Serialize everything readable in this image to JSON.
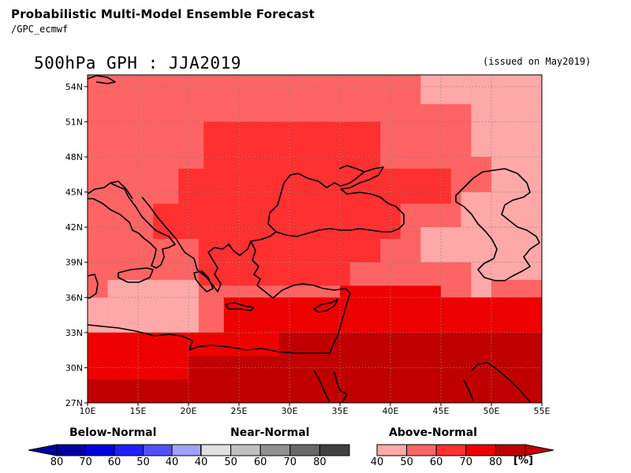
{
  "header": {
    "title": "Probabilistic Multi-Model Ensemble Forecast",
    "subtitle": "/GPC_ecmwf"
  },
  "map": {
    "title": "500hPa GPH : JJA2019",
    "issued": "(issued on May2019)",
    "lon_range": [
      10,
      55
    ],
    "lat_range": [
      27,
      55
    ],
    "lon_labels": [
      "10E",
      "15E",
      "20E",
      "25E",
      "30E",
      "35E",
      "40E",
      "45E",
      "50E",
      "55E"
    ],
    "lat_labels": [
      "54N",
      "51N",
      "48N",
      "45N",
      "42N",
      "39N",
      "36N",
      "33N",
      "30N",
      "27N"
    ],
    "grid": "dotted",
    "field_note": "Probability of above-normal 500hPa GPH: 40-80% across domain, highest (70-80%) in south",
    "colors": {
      "above_40": "#ffa8a8",
      "above_50": "#ff6464",
      "above_60": "#ff3030",
      "above_70": "#ee0000",
      "above_80": "#c00000"
    }
  },
  "legend": {
    "below": {
      "title": "Below-Normal",
      "labels": [
        "80",
        "70",
        "60",
        "50",
        "40"
      ],
      "colors": [
        "#0000a0",
        "#0000e0",
        "#2020ff",
        "#5050ff",
        "#a0a0ff"
      ]
    },
    "near": {
      "title": "Near-Normal",
      "labels": [
        "40",
        "50",
        "60",
        "70",
        "80"
      ],
      "colors": [
        "#e0e0e0",
        "#c0c0c0",
        "#909090",
        "#686868",
        "#404040"
      ]
    },
    "above": {
      "title": "Above-Normal",
      "labels": [
        "40",
        "50",
        "60",
        "70",
        "80"
      ],
      "colors": [
        "#ffa8a8",
        "#ff6464",
        "#ff3030",
        "#ee0000",
        "#c00000"
      ]
    },
    "unit": "[%]"
  }
}
